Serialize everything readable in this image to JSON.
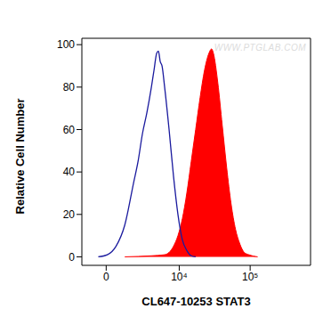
{
  "chart_data": {
    "type": "line",
    "x_label": "CL647-10253 STAT3",
    "y_label": "Relative Cell Number",
    "annotations": [
      "WWW.PTGLAB.COM"
    ],
    "xlim": [
      -1300,
      660000
    ],
    "xticks": [
      0,
      {
        "value": 10000,
        "label": "10⁴"
      },
      {
        "value": 100000,
        "label": "10⁵"
      }
    ],
    "ylim": [
      -4,
      103
    ],
    "yticks": [
      0,
      20,
      40,
      60,
      80,
      100
    ],
    "grid": false,
    "series": [
      {
        "type": "line",
        "color": "#1a1a9e",
        "x": [
          -320,
          40,
          410,
          900,
          1550,
          1950,
          2400,
          2930,
          3540,
          3940,
          4380,
          4690,
          5020,
          5375,
          5930,
          6980,
          8180,
          9560,
          11140,
          12960,
          15040,
          17430
        ],
        "values": [
          0,
          1,
          5,
          15,
          35,
          45,
          58,
          68,
          80,
          88,
          96,
          97,
          92,
          90,
          80,
          60,
          38,
          20,
          8,
          3,
          0.5,
          0
        ]
      },
      {
        "type": "area",
        "color": "#ff0000",
        "x": [
          900,
          3540,
          5930,
          8180,
          9560,
          11140,
          12960,
          15040,
          17430,
          20170,
          23330,
          26950,
          29350,
          31080,
          35850,
          41320,
          47600,
          54740,
          63000,
          72450,
          83370,
          95900,
          126600
        ],
        "values": [
          0,
          0.5,
          1,
          5,
          10,
          18,
          30,
          45,
          60,
          75,
          88,
          96,
          98,
          96,
          82,
          62,
          42,
          25,
          13,
          6,
          2,
          1,
          0
        ]
      }
    ]
  }
}
